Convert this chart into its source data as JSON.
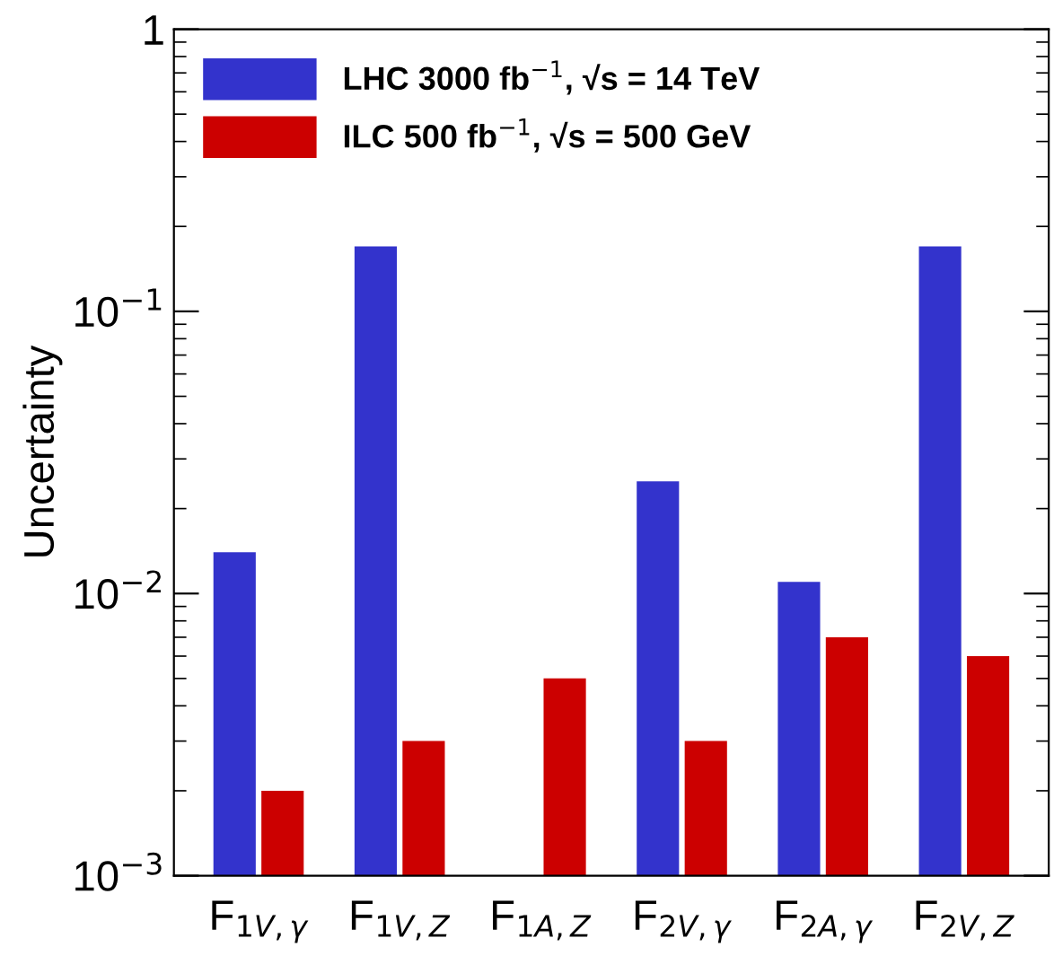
{
  "chart_data": {
    "type": "bar",
    "ylabel": "Uncertainty",
    "log": true,
    "ylim": [
      0.001,
      1
    ],
    "yticks": [
      {
        "value": 0.001,
        "label": "10$^{−3}$"
      },
      {
        "value": 0.01,
        "label": "10$^{−2}$"
      },
      {
        "value": 0.1,
        "label": "10$^{−1}$"
      },
      1
    ],
    "categories": [
      "F$_{1V,γ}$",
      "F$_{1V,Z}$",
      "F$_{1A,Z}$",
      "F$_{2V,γ}$",
      "F$_{2A,γ}$",
      "F$_{2V,Z}$"
    ],
    "series": [
      {
        "name": "LHC 3000 fb$^{−1}$, √s = 14 TeV",
        "color": "#3333cc",
        "values": [
          0.014,
          0.17,
          null,
          0.025,
          0.011,
          0.17
        ]
      },
      {
        "name": "ILC 500 fb$^{−1}$, √s = 500 GeV",
        "color": "#cc0000",
        "values": [
          0.002,
          0.003,
          0.005,
          0.003,
          0.007,
          0.006
        ]
      }
    ],
    "legend": "top left",
    "grid": false
  }
}
